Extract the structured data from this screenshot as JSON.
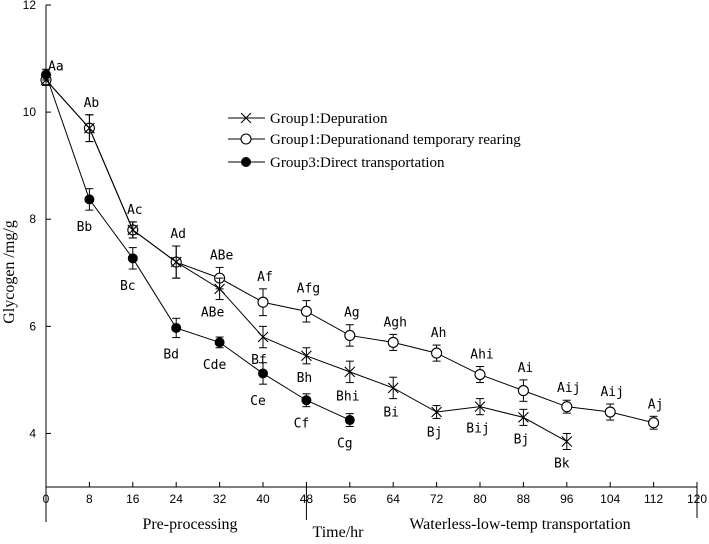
{
  "chart_data": {
    "type": "line",
    "title": "",
    "xlabel": "Time/hr",
    "ylabel": "Glycogen /mg/g",
    "xlim": [
      0,
      120
    ],
    "ylim": [
      3,
      12
    ],
    "xticks": [
      0,
      8,
      16,
      24,
      32,
      40,
      48,
      56,
      64,
      72,
      80,
      88,
      96,
      104,
      112,
      120
    ],
    "yticks": [
      4,
      6,
      8,
      10,
      12
    ],
    "phase_labels": [
      "Pre-processing",
      "Waterless-low-temp transportation"
    ],
    "phase_divider_x": 48,
    "legend_position": "upper-center",
    "series": [
      {
        "name": "Group1:Depuration",
        "marker": "x",
        "x": [
          0,
          8,
          16,
          24,
          32,
          40,
          48,
          56,
          64,
          72,
          80,
          88,
          96
        ],
        "values": [
          10.6,
          9.7,
          7.8,
          7.2,
          6.7,
          5.8,
          5.45,
          5.15,
          4.85,
          4.4,
          4.5,
          4.3,
          3.85
        ],
        "errors": [
          0.1,
          0.25,
          0.15,
          0.3,
          0.2,
          0.2,
          0.15,
          0.2,
          0.2,
          0.12,
          0.15,
          0.15,
          0.15
        ],
        "labels": [
          "",
          "",
          "",
          "",
          "ABe",
          "Bf",
          "Bh",
          "Bhi",
          "Bi",
          "Bj",
          "Bij",
          "Bj",
          "Bk"
        ]
      },
      {
        "name": "Group1:Depurationand temporary rearing",
        "marker": "open-circle",
        "x": [
          0,
          8,
          16,
          24,
          32,
          40,
          48,
          56,
          64,
          72,
          80,
          88,
          96,
          104,
          112
        ],
        "values": [
          10.6,
          9.7,
          7.8,
          7.2,
          6.9,
          6.45,
          6.28,
          5.83,
          5.7,
          5.5,
          5.1,
          4.8,
          4.5,
          4.4,
          4.2
        ],
        "errors": [
          0.1,
          0.25,
          0.15,
          0.3,
          0.2,
          0.25,
          0.2,
          0.2,
          0.15,
          0.15,
          0.15,
          0.2,
          0.12,
          0.15,
          0.12
        ],
        "labels": [
          "Aa",
          "Ab",
          "Ac",
          "Ad",
          "ABe",
          "Af",
          "Afg",
          "Ag",
          "Agh",
          "Ah",
          "Ahi",
          "Ai",
          "Aij",
          "Aij",
          "Aj"
        ]
      },
      {
        "name": "Group3:Direct transportation",
        "marker": "filled-circle",
        "x": [
          0,
          8,
          16,
          24,
          32,
          40,
          48,
          56
        ],
        "values": [
          10.7,
          8.37,
          7.27,
          5.97,
          5.7,
          5.12,
          4.62,
          4.25
        ],
        "errors": [
          0.1,
          0.2,
          0.2,
          0.18,
          0.1,
          0.2,
          0.12,
          0.12
        ],
        "labels": [
          "",
          "Bb",
          "Bc",
          "Bd",
          "Cde",
          "Ce",
          "Cf",
          "Cg"
        ]
      }
    ]
  }
}
